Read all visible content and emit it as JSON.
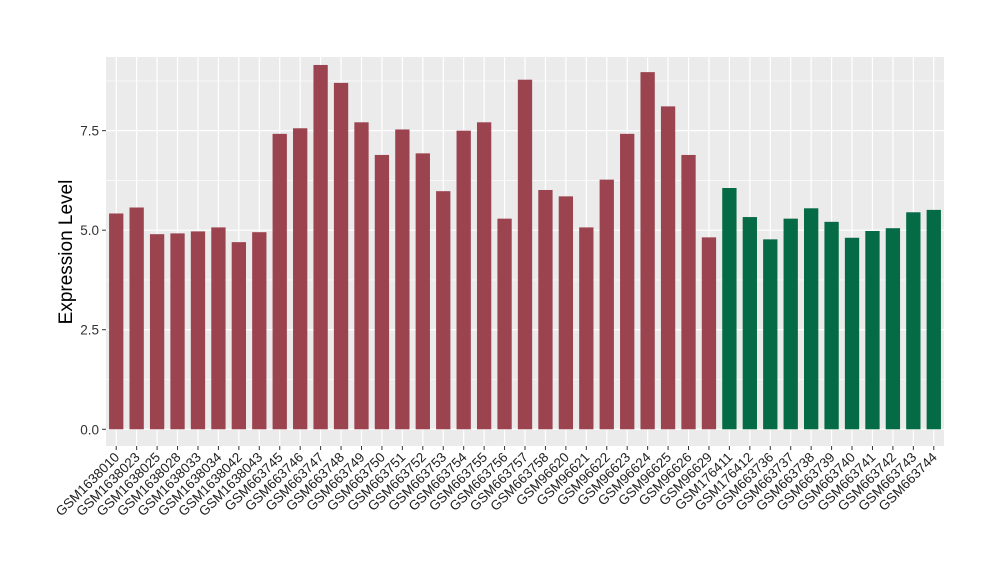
{
  "chart_data": {
    "type": "bar",
    "title": "",
    "xlabel": "",
    "ylabel": "Expression Level",
    "ylim": [
      -0.42,
      9.35
    ],
    "yticks": [
      0.0,
      2.5,
      5.0,
      7.5
    ],
    "ytick_labels": [
      "0.0",
      "2.5",
      "5.0",
      "7.5"
    ],
    "grid": true,
    "legend": "none",
    "categories": [
      "GSM1638010",
      "GSM1638023",
      "GSM1638025",
      "GSM1638028",
      "GSM1638033",
      "GSM1638034",
      "GSM1638042",
      "GSM1638043",
      "GSM663745",
      "GSM663746",
      "GSM663747",
      "GSM663748",
      "GSM663749",
      "GSM663750",
      "GSM663751",
      "GSM663752",
      "GSM663753",
      "GSM663754",
      "GSM663755",
      "GSM663756",
      "GSM663757",
      "GSM663758",
      "GSM96620",
      "GSM96621",
      "GSM96622",
      "GSM96623",
      "GSM96624",
      "GSM96625",
      "GSM96626",
      "GSM96629",
      "GSM176411",
      "GSM176412",
      "GSM663736",
      "GSM663737",
      "GSM663738",
      "GSM663739",
      "GSM663740",
      "GSM663741",
      "GSM663742",
      "GSM663743",
      "GSM663744"
    ],
    "values": [
      5.42,
      5.57,
      4.9,
      4.92,
      4.97,
      5.07,
      4.7,
      4.95,
      7.42,
      7.56,
      9.15,
      8.7,
      7.71,
      6.89,
      7.53,
      6.93,
      5.98,
      7.5,
      7.71,
      5.29,
      8.78,
      6.01,
      5.85,
      5.07,
      6.27,
      7.42,
      8.97,
      8.11,
      6.89,
      4.82,
      6.06,
      5.33,
      4.77,
      5.29,
      5.55,
      5.21,
      4.81,
      4.98,
      5.05,
      5.45,
      5.51
    ],
    "groups": [
      0,
      0,
      0,
      0,
      0,
      0,
      0,
      0,
      0,
      0,
      0,
      0,
      0,
      0,
      0,
      0,
      0,
      0,
      0,
      0,
      0,
      0,
      0,
      0,
      0,
      0,
      0,
      0,
      0,
      0,
      1,
      1,
      1,
      1,
      1,
      1,
      1,
      1,
      1,
      1,
      1
    ],
    "group_colors": [
      "#9b4450",
      "#046b46"
    ],
    "panel_color": "#ebebeb",
    "grid_color": "#ffffff"
  }
}
